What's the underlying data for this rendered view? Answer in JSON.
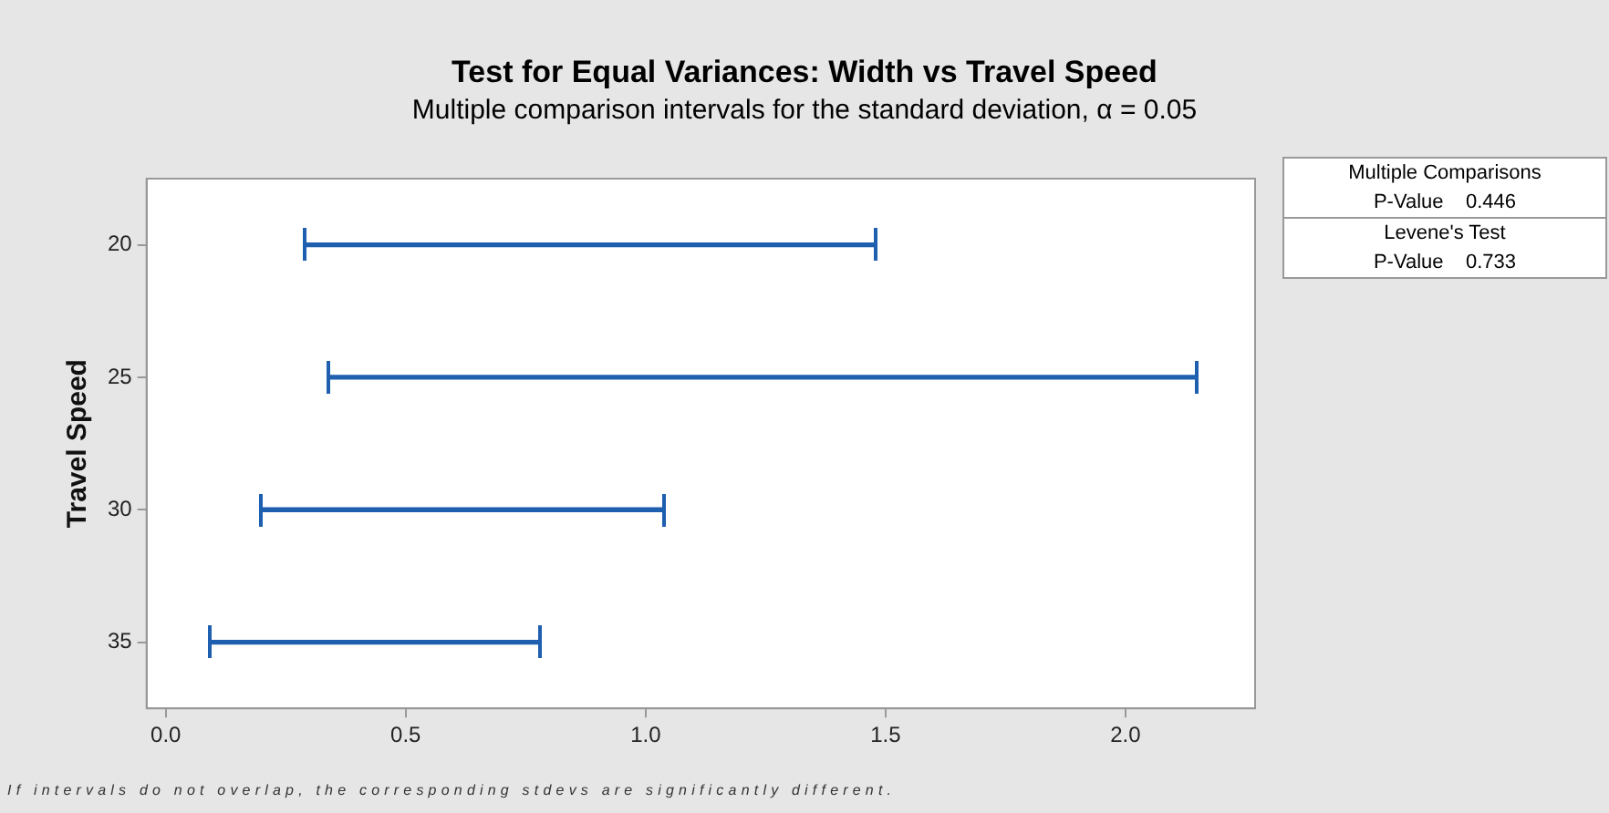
{
  "chart_data": {
    "type": "bar",
    "orientation": "horizontal",
    "title": "Test for Equal Variances: Width vs Travel Speed",
    "subtitle": "Multiple comparison intervals for the standard deviation, α = 0.05",
    "ylabel": "Travel Speed",
    "categories": [
      "20",
      "25",
      "30",
      "35"
    ],
    "base": [
      0.29,
      0.34,
      0.2,
      0.09
    ],
    "values": [
      1.19,
      1.81,
      0.84,
      0.69
    ],
    "color": "#1f5fb0",
    "xlim": [
      -0.04,
      2.27
    ],
    "xticks": [
      {
        "value": 0,
        "label": "0.0"
      },
      {
        "value": 0.5,
        "label": "0.5"
      },
      {
        "value": 1,
        "label": "1.0"
      },
      {
        "value": 1.5,
        "label": "1.5"
      },
      {
        "value": 2,
        "label": "2.0"
      }
    ],
    "grid": false,
    "legend": false,
    "annotations": [
      "Multiple Comparisons",
      "P-Value    0.446",
      "Levene's Test",
      "P-Value    0.733",
      "If intervals do not overlap, the corresponding stdevs are significantly different."
    ]
  }
}
